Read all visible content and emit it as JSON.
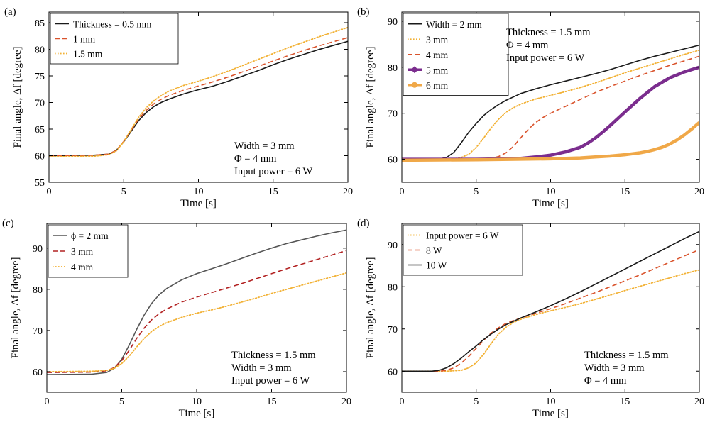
{
  "colors": {
    "black": "#1a1a1a",
    "gray": "#555555",
    "red": "#d9532c",
    "crimson": "#b22222",
    "yellow": "#f2b134",
    "purple": "#7b2d8e",
    "orange": "#f0a848"
  },
  "chart_data": [
    {
      "panel": "(a)",
      "type": "line",
      "xlabel": "Time [s]",
      "ylabel": "Final angle, Δf [degree]",
      "xlim": [
        0,
        20
      ],
      "ylim": [
        55,
        87
      ],
      "xticks": [
        0,
        5,
        10,
        15,
        20
      ],
      "yticks": [
        55,
        60,
        65,
        70,
        75,
        80,
        85
      ],
      "legend_position": "top-left",
      "annotations": [
        "Width = 3 mm",
        "Φ = 4 mm",
        "Input power  = 6 W"
      ],
      "series": [
        {
          "name": "Thickness = 0.5 mm",
          "color": "black",
          "style": "solid",
          "width": 1.6,
          "x": [
            0,
            3,
            4,
            4.5,
            5,
            5.5,
            6,
            6.5,
            7,
            7.5,
            8,
            9,
            10,
            11,
            12,
            13,
            14,
            15,
            16,
            17,
            18,
            19,
            20
          ],
          "y": [
            60,
            60.1,
            60.3,
            61,
            62.6,
            64.6,
            66.6,
            68.1,
            69.2,
            70,
            70.6,
            71.6,
            72.4,
            73.1,
            74,
            75,
            76,
            77.1,
            78.1,
            79,
            79.9,
            80.7,
            81.5
          ]
        },
        {
          "name": "1 mm",
          "color": "red",
          "style": "dashed",
          "width": 1.6,
          "x": [
            0,
            3,
            4,
            4.5,
            5,
            5.5,
            6,
            6.5,
            7,
            7.5,
            8,
            9,
            10,
            11,
            12,
            13,
            14,
            15,
            16,
            17,
            18,
            19,
            20
          ],
          "y": [
            60,
            60.1,
            60.3,
            61,
            62.7,
            64.8,
            66.9,
            68.5,
            69.7,
            70.6,
            71.3,
            72.3,
            73.1,
            73.9,
            74.8,
            75.8,
            76.8,
            77.8,
            78.8,
            79.7,
            80.6,
            81.4,
            82.2
          ]
        },
        {
          "name": "1.5 mm",
          "color": "yellow",
          "style": "dotted",
          "width": 1.8,
          "x": [
            0,
            3,
            4,
            4.5,
            5,
            5.5,
            6,
            6.5,
            7,
            7.5,
            8,
            9,
            10,
            11,
            12,
            13,
            14,
            15,
            16,
            17,
            18,
            19,
            20
          ],
          "y": [
            59.8,
            59.9,
            60.2,
            60.9,
            62.6,
            64.9,
            67.2,
            69,
            70.3,
            71.3,
            72.1,
            73.2,
            74,
            74.9,
            75.9,
            77,
            78.1,
            79.2,
            80.3,
            81.3,
            82.3,
            83.2,
            84.1
          ]
        }
      ]
    },
    {
      "panel": "(b)",
      "type": "line",
      "xlabel": "Time [s]",
      "ylabel": "Final angle, Δf [degree]",
      "xlim": [
        0,
        20
      ],
      "ylim": [
        55,
        92
      ],
      "xticks": [
        0,
        5,
        10,
        15,
        20
      ],
      "yticks": [
        60,
        70,
        80,
        90
      ],
      "legend_position": "top-left",
      "annotations": [
        "Thickness = 1.5 mm",
        "Φ = 4 mm",
        "Input power  = 6 W"
      ],
      "series": [
        {
          "name": "Width = 2 mm",
          "color": "black",
          "style": "solid",
          "width": 1.6,
          "x": [
            0,
            2.5,
            3,
            3.5,
            4,
            4.5,
            5,
            5.5,
            6,
            6.5,
            7,
            8,
            9,
            10,
            11,
            12,
            13,
            14,
            15,
            16,
            17,
            18,
            19,
            20
          ],
          "y": [
            60,
            60.1,
            60.4,
            61.5,
            63.6,
            65.9,
            67.8,
            69.5,
            70.8,
            71.9,
            72.8,
            74.3,
            75.3,
            76.2,
            77,
            77.8,
            78.6,
            79.5,
            80.5,
            81.5,
            82.4,
            83.2,
            84,
            84.8
          ]
        },
        {
          "name": "3 mm",
          "color": "yellow",
          "style": "dotted",
          "width": 1.8,
          "x": [
            0,
            3.5,
            4,
            4.5,
            5,
            5.5,
            6,
            6.5,
            7,
            7.5,
            8,
            9,
            10,
            11,
            12,
            13,
            14,
            15,
            16,
            17,
            18,
            19,
            20
          ],
          "y": [
            60,
            60.1,
            60.4,
            61.1,
            62.6,
            64.6,
            66.8,
            68.7,
            70.2,
            71.2,
            72,
            73.1,
            73.9,
            74.7,
            75.6,
            76.6,
            77.7,
            78.8,
            79.8,
            80.8,
            81.8,
            82.8,
            83.7
          ]
        },
        {
          "name": "4 mm",
          "color": "red",
          "style": "dashed",
          "width": 1.6,
          "x": [
            0,
            5,
            6,
            6.5,
            7,
            7.5,
            8,
            8.5,
            9,
            9.5,
            10,
            11,
            12,
            13,
            14,
            15,
            16,
            17,
            18,
            19,
            20
          ],
          "y": [
            60,
            60,
            60.2,
            60.6,
            61.4,
            62.8,
            64.7,
            66.5,
            68,
            69.1,
            70,
            71.5,
            73,
            74.5,
            75.8,
            77,
            78.2,
            79.3,
            80.4,
            81.4,
            82.4
          ]
        },
        {
          "name": "5 mm",
          "color": "purple",
          "style": "solid",
          "width": 4.5,
          "marker": "diamond",
          "x": [
            0,
            5,
            8,
            9,
            10,
            11,
            12,
            12.5,
            13,
            13.5,
            14,
            15,
            16,
            17,
            18,
            19,
            20
          ],
          "y": [
            60,
            60,
            60.2,
            60.5,
            60.9,
            61.6,
            62.6,
            63.5,
            64.6,
            65.9,
            67.3,
            70.3,
            73.2,
            75.8,
            77.7,
            79,
            80
          ]
        },
        {
          "name": "6 mm",
          "color": "orange",
          "style": "solid",
          "width": 4.5,
          "marker": "circle",
          "x": [
            0,
            5,
            10,
            12,
            13,
            14,
            15,
            16,
            16.5,
            17,
            17.5,
            18,
            18.5,
            19,
            19.5,
            20
          ],
          "y": [
            59.8,
            59.9,
            60.1,
            60.3,
            60.5,
            60.7,
            61,
            61.4,
            61.7,
            62.1,
            62.6,
            63.3,
            64.2,
            65.3,
            66.6,
            68
          ]
        }
      ]
    },
    {
      "panel": "(c)",
      "type": "line",
      "xlabel": "Time [s]",
      "ylabel": "Final angle, Δf [degree]",
      "xlim": [
        0,
        20
      ],
      "ylim": [
        55,
        96
      ],
      "xticks": [
        0,
        5,
        10,
        15,
        20
      ],
      "yticks": [
        60,
        70,
        80,
        90
      ],
      "legend_position": "top-left",
      "annotations": [
        "Thickness = 1.5 mm",
        "Width = 3 mm",
        "Input power  = 6 W"
      ],
      "series": [
        {
          "name": "ϕ = 2 mm",
          "color": "gray",
          "style": "solid",
          "width": 1.6,
          "x": [
            0,
            3,
            4,
            4.5,
            5,
            5.5,
            6,
            6.5,
            7,
            7.5,
            8,
            9,
            10,
            11,
            12,
            13,
            14,
            15,
            16,
            17,
            18,
            19,
            20
          ],
          "y": [
            59.3,
            59.4,
            59.8,
            60.8,
            63,
            66.5,
            70.3,
            73.8,
            76.6,
            78.7,
            80.2,
            82.3,
            83.8,
            85,
            86.2,
            87.5,
            88.8,
            90,
            91.1,
            92,
            92.9,
            93.7,
            94.4
          ]
        },
        {
          "name": "3 mm",
          "color": "crimson",
          "style": "dashed",
          "width": 1.6,
          "x": [
            0,
            3,
            4,
            4.5,
            5,
            5.5,
            6,
            6.5,
            7,
            7.5,
            8,
            9,
            10,
            11,
            12,
            13,
            14,
            15,
            16,
            17,
            18,
            19,
            20
          ],
          "y": [
            59.8,
            59.9,
            60.2,
            61,
            62.7,
            65.2,
            68.1,
            70.6,
            72.6,
            74.1,
            75.2,
            76.9,
            78.1,
            79.2,
            80.3,
            81.4,
            82.6,
            83.8,
            85,
            86.1,
            87.2,
            88.3,
            89.4
          ]
        },
        {
          "name": "4 mm",
          "color": "yellow",
          "style": "dotted",
          "width": 1.8,
          "x": [
            0,
            3,
            4,
            4.5,
            5,
            5.5,
            6,
            6.5,
            7,
            7.5,
            8,
            9,
            10,
            11,
            12,
            13,
            14,
            15,
            16,
            17,
            18,
            19,
            20
          ],
          "y": [
            60,
            60.1,
            60.3,
            60.8,
            62,
            63.8,
            66,
            68.1,
            69.8,
            71,
            71.9,
            73.2,
            74.2,
            75,
            75.9,
            76.9,
            77.9,
            79,
            80,
            81,
            82,
            83,
            84
          ]
        }
      ]
    },
    {
      "panel": "(d)",
      "type": "line",
      "xlabel": "Time [s]",
      "ylabel": "Final angle, Δf [degree]",
      "xlim": [
        0,
        20
      ],
      "ylim": [
        55,
        95
      ],
      "xticks": [
        0,
        5,
        10,
        15,
        20
      ],
      "yticks": [
        60,
        70,
        80,
        90
      ],
      "legend_position": "top-left",
      "annotations": [
        "Thickness = 1.5 mm",
        "Width = 3 mm",
        "Φ = 4 mm"
      ],
      "series": [
        {
          "name": "Input power = 6 W",
          "color": "yellow",
          "style": "dotted",
          "width": 1.8,
          "x": [
            0,
            3,
            4,
            4.5,
            5,
            5.5,
            6,
            6.5,
            7,
            7.5,
            8,
            9,
            10,
            11,
            12,
            13,
            14,
            15,
            16,
            17,
            18,
            19,
            20
          ],
          "y": [
            60,
            60,
            60.2,
            60.8,
            62,
            64,
            66.5,
            68.8,
            70.4,
            71.5,
            72.3,
            73.4,
            74.3,
            75.1,
            76,
            77,
            78,
            79.1,
            80.1,
            81.1,
            82.1,
            83.1,
            84
          ]
        },
        {
          "name": "8 W",
          "color": "red",
          "style": "dashed",
          "width": 1.6,
          "x": [
            0,
            2.5,
            3,
            3.5,
            4,
            4.5,
            5,
            5.5,
            6,
            6.5,
            7,
            7.5,
            8,
            9,
            10,
            11,
            12,
            13,
            14,
            15,
            16,
            17,
            18,
            19,
            20
          ],
          "y": [
            60,
            60,
            60.2,
            60.8,
            61.9,
            63.5,
            65.4,
            67.3,
            69,
            70.3,
            71.3,
            72,
            72.6,
            73.7,
            74.8,
            76,
            77.3,
            78.6,
            80,
            81.4,
            82.8,
            84.3,
            85.8,
            87.3,
            88.8
          ]
        },
        {
          "name": "10 W",
          "color": "black",
          "style": "solid",
          "width": 1.6,
          "x": [
            0,
            2,
            2.5,
            3,
            3.5,
            4,
            4.5,
            5,
            5.5,
            6,
            6.5,
            7,
            7.5,
            8,
            9,
            10,
            11,
            12,
            13,
            14,
            15,
            16,
            17,
            18,
            19,
            20
          ],
          "y": [
            60,
            60,
            60.2,
            60.8,
            61.8,
            63.1,
            64.6,
            66,
            67.5,
            68.8,
            70,
            71,
            71.8,
            72.6,
            74,
            75.5,
            77.1,
            78.8,
            80.6,
            82.4,
            84.2,
            86,
            87.8,
            89.6,
            91.4,
            93.1
          ]
        }
      ]
    }
  ]
}
